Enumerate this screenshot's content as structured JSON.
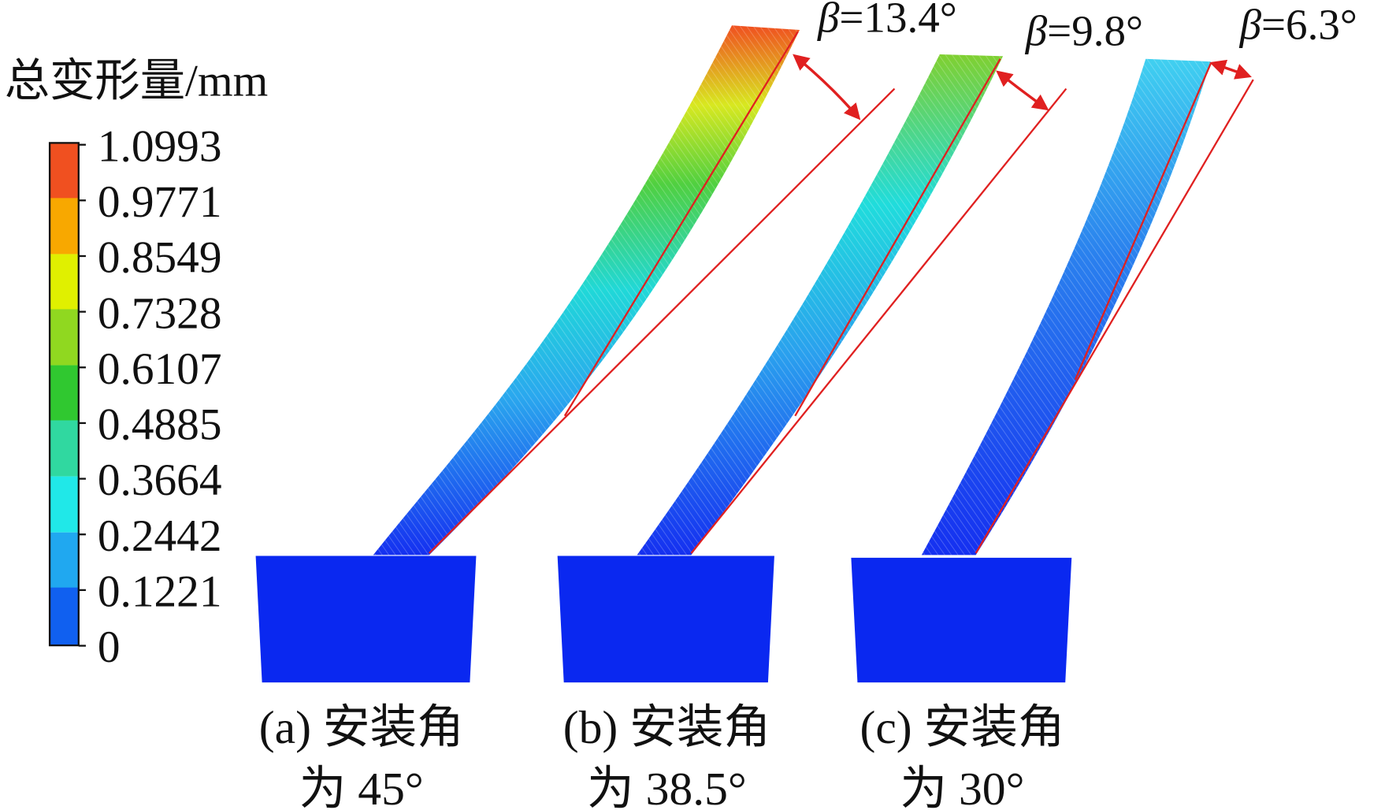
{
  "legend": {
    "title": "总变形量/mm",
    "ticks": [
      "1.0993",
      "0.9771",
      "0.8549",
      "0.7328",
      "0.6107",
      "0.4885",
      "0.3664",
      "0.2442",
      "0.1221",
      "0"
    ]
  },
  "panels": [
    {
      "symbol": "β",
      "beta": "=13.4°",
      "caption_line1": "(a) 安装角",
      "caption_line2": "为 45°"
    },
    {
      "symbol": "β",
      "beta": "=9.8°",
      "caption_line1": "(b) 安装角",
      "caption_line2": "为 38.5°"
    },
    {
      "symbol": "β",
      "beta": "=6.3°",
      "caption_line1": "(c) 安装角",
      "caption_line2": "为 30°"
    }
  ]
}
